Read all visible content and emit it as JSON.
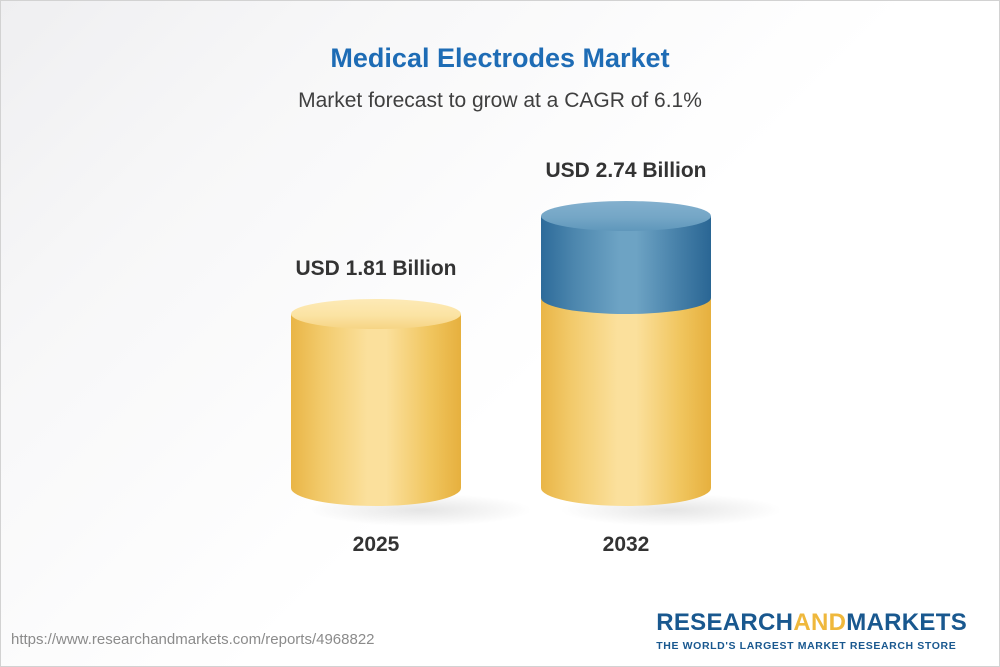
{
  "header": {
    "title": "Medical Electrodes Market",
    "subtitle": "Market forecast to grow at a CAGR of 6.1%"
  },
  "chart_data": {
    "type": "bar",
    "variant": "3d-cylinder",
    "title": "Medical Electrodes Market",
    "subtitle": "Market forecast to grow at a CAGR of 6.1%",
    "categories": [
      "2025",
      "2032"
    ],
    "values": [
      1.81,
      2.74
    ],
    "value_labels": [
      "USD 1.81 Billion",
      "USD 2.74 Billion"
    ],
    "unit": "USD Billion",
    "cagr_percent": 6.1,
    "ylim": [
      0,
      2.9
    ],
    "legend": "none",
    "grid": "off",
    "colors": {
      "base_segment": "#F5C963",
      "growth_segment": "#3D7CA8",
      "title_accent": "#1E6CB5"
    }
  },
  "footer": {
    "url": "https://www.researchandmarkets.com/reports/4968822",
    "logo": {
      "research": "RESEARCH",
      "and": "AND",
      "markets": "MARKETS",
      "tagline": "THE WORLD'S LARGEST MARKET RESEARCH STORE"
    }
  }
}
